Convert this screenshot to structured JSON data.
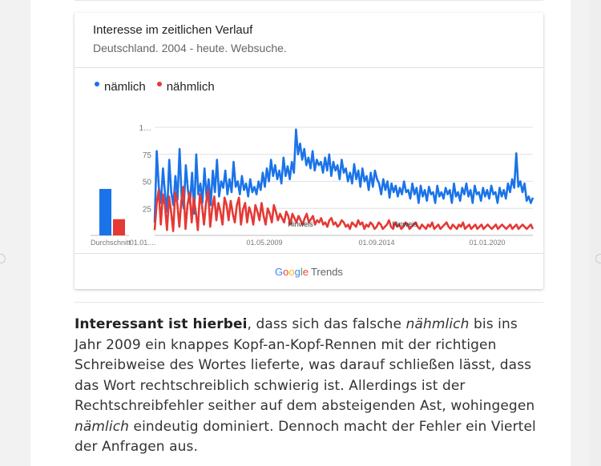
{
  "card": {
    "title": "Interesse im zeitlichen Verlauf",
    "subtitle": "Deutschland. 2004 - heute. Websuche."
  },
  "footer": {
    "logo_google": "Google",
    "logo_trends": "Trends"
  },
  "paragraph": {
    "lead": "Interessant ist hierbei",
    "text1": ", dass sich das falsche ",
    "em1": "nähmlich",
    "text2": " bis ins Jahr 2009 ein knappes Kopf-an-Kopf-Rennen mit der richtigen Schreibweise des Wortes lieferte, was darauf schließen lässt, dass das Wort rechtschreiblich schwierig ist. Allerdings ist der Rechtschreibfehler seither auf dem absteigenden Ast, wohingegen ",
    "em2": "nämlich",
    "text3": " eindeutig dominiert. Dennoch macht der Fehler ein Viertel der Anfragen aus."
  },
  "chart_data": {
    "type": "line",
    "ylim": [
      0,
      100
    ],
    "yticks": [
      "1…",
      "75",
      "50",
      "25"
    ],
    "xticks": [
      "01.01....",
      "01.05.2009",
      "01.09.2014",
      "01.01.2020"
    ],
    "average_label": "Durchschnitt",
    "averages": [
      {
        "name": "nämlich",
        "value": 43
      },
      {
        "name": "nähmlich",
        "value": 15
      }
    ],
    "annotations": [
      "Hinweis",
      "Hinweis"
    ],
    "series": [
      {
        "name": "nämlich",
        "color": "#1a73e8",
        "values": [
          12,
          78,
          45,
          30,
          62,
          38,
          22,
          70,
          40,
          28,
          55,
          33,
          80,
          35,
          25,
          65,
          42,
          30,
          58,
          20,
          75,
          38,
          48,
          30,
          62,
          35,
          52,
          28,
          60,
          40,
          70,
          36,
          50,
          44,
          60,
          38,
          52,
          40,
          68,
          45,
          50,
          38,
          55,
          42,
          48,
          36,
          52,
          40,
          45,
          38,
          50,
          42,
          58,
          45,
          62,
          50,
          70,
          55,
          65,
          52,
          60,
          48,
          72,
          55,
          64,
          52,
          68,
          58,
          98,
          75,
          85,
          70,
          80,
          65,
          72,
          62,
          78,
          60,
          70,
          65,
          68,
          58,
          72,
          60,
          75,
          55,
          68,
          60,
          65,
          52,
          70,
          58,
          62,
          50,
          58,
          48,
          66,
          52,
          60,
          45,
          62,
          50,
          55,
          42,
          58,
          45,
          60,
          52,
          48,
          38,
          52,
          42,
          50,
          35,
          48,
          40,
          46,
          36,
          44,
          38,
          50,
          40,
          42,
          34,
          48,
          38,
          44,
          30,
          46,
          36,
          42,
          32,
          45,
          38,
          40,
          30,
          46,
          36,
          40,
          34,
          44,
          38,
          42,
          30,
          48,
          36,
          40,
          32,
          44,
          38,
          48,
          36,
          42,
          30,
          46,
          38,
          40,
          32,
          44,
          36,
          42,
          34,
          46,
          38,
          40,
          30,
          44,
          36,
          42,
          34,
          48,
          40,
          52,
          44,
          76,
          45,
          50,
          40,
          48,
          32,
          36,
          30,
          35
        ]
      },
      {
        "name": "nähmlich",
        "color": "#e53935",
        "values": [
          5,
          30,
          42,
          10,
          38,
          28,
          5,
          36,
          22,
          4,
          40,
          30,
          8,
          32,
          45,
          6,
          28,
          40,
          12,
          35,
          22,
          5,
          38,
          28,
          10,
          30,
          42,
          8,
          25,
          36,
          14,
          30,
          22,
          10,
          35,
          28,
          14,
          32,
          20,
          12,
          28,
          35,
          10,
          24,
          30,
          12,
          26,
          20,
          10,
          28,
          22,
          14,
          30,
          18,
          10,
          25,
          20,
          12,
          28,
          22,
          14,
          20,
          16,
          12,
          22,
          18,
          10,
          20,
          16,
          12,
          18,
          14,
          10,
          16,
          20,
          12,
          15,
          18,
          10,
          14,
          12,
          16,
          10,
          12,
          8,
          14,
          16,
          10,
          12,
          8,
          10,
          14,
          12,
          8,
          10,
          6,
          12,
          10,
          8,
          14,
          10,
          12,
          6,
          10,
          8,
          12,
          10,
          6,
          8,
          12,
          10,
          6,
          8,
          10,
          14,
          8,
          6,
          12,
          8,
          10,
          6,
          8,
          12,
          10,
          6,
          8,
          10,
          12,
          8,
          6,
          10,
          8,
          6,
          10,
          8,
          12,
          6,
          8,
          10,
          6,
          8,
          10,
          12,
          8,
          6,
          10,
          8,
          6,
          10,
          8,
          12,
          6,
          8,
          10,
          6,
          8,
          10,
          6,
          8,
          10,
          6,
          8,
          10,
          8,
          6,
          8,
          10,
          6,
          8,
          10,
          8,
          6,
          8,
          10,
          6,
          8,
          10,
          6,
          8,
          10,
          8,
          6,
          8,
          10,
          6
        ]
      }
    ]
  }
}
